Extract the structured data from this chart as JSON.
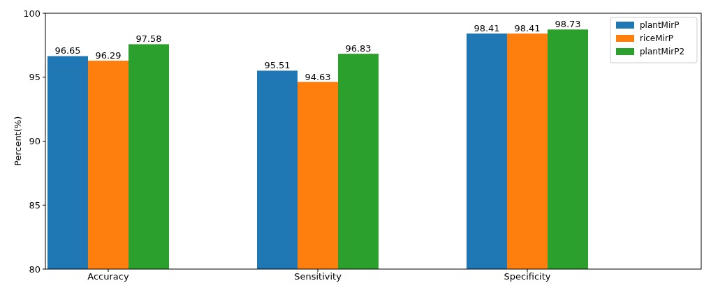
{
  "chart_data": {
    "type": "bar",
    "ylabel": "Percent(%)",
    "categories": [
      "Accuracy",
      "Sensitivity",
      "Specificity"
    ],
    "series": [
      {
        "name": "plantMirP",
        "color": "#1f77b4",
        "values": [
          96.65,
          95.51,
          98.41
        ]
      },
      {
        "name": "riceMirP",
        "color": "#ff7f0e",
        "values": [
          96.29,
          94.63,
          98.41
        ]
      },
      {
        "name": "plantMirP2",
        "color": "#2ca02c",
        "values": [
          97.58,
          96.83,
          98.73
        ]
      }
    ],
    "ylim": [
      80,
      100
    ],
    "yticks": [
      80,
      85,
      90,
      95,
      100
    ],
    "data_labels": true,
    "legend": "top right",
    "grid": false
  }
}
